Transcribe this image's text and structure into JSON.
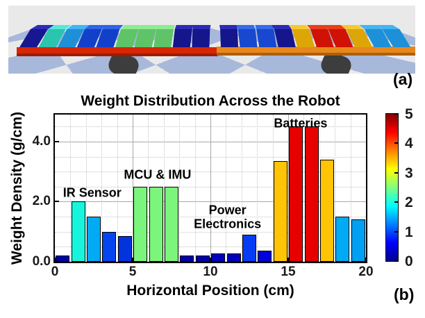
{
  "figure": {
    "panel_a_label": "(a)",
    "panel_b_label": "(b)"
  },
  "robot_render": {
    "floor": {
      "tile_light": "#e9e9e9",
      "tile_blue": "#a7b8da"
    },
    "base": {
      "left_color": "#d62604",
      "left_shadow": "#9e1b00",
      "right_color": "#e8871c",
      "right_shadow": "#aa600e"
    },
    "wheel_color": "#3d3d3d",
    "blocks": [
      {
        "front": "#17178f",
        "top": "#2d2dbb"
      },
      {
        "front": "#2bc4ae",
        "top": "#55ead5"
      },
      {
        "front": "#1e90d8",
        "top": "#43b5f2"
      },
      {
        "front": "#1240c9",
        "top": "#3063e8"
      },
      {
        "front": "#1240c9",
        "top": "#3063e8"
      },
      {
        "front": "#5fc468",
        "top": "#8deb93"
      },
      {
        "front": "#5fc468",
        "top": "#8deb93"
      },
      {
        "front": "#5fc468",
        "top": "#8deb93"
      },
      {
        "front": "#15158c",
        "top": "#2b2bb5"
      },
      {
        "front": "#15158c",
        "top": "#2b2bb5"
      },
      {
        "front": "#15158c",
        "top": "#2b2bb5"
      },
      {
        "front": "#1748cf",
        "top": "#366ceb"
      },
      {
        "front": "#1748cf",
        "top": "#366ceb"
      },
      {
        "front": "#15158c",
        "top": "#2b2bb5"
      },
      {
        "front": "#dca607",
        "top": "#f4ca30"
      },
      {
        "front": "#cf1204",
        "top": "#ec3c1b"
      },
      {
        "front": "#cf1204",
        "top": "#ec3c1b"
      },
      {
        "front": "#dca607",
        "top": "#f4ca30"
      },
      {
        "front": "#1e90d8",
        "top": "#43b5f2"
      },
      {
        "front": "#1e90d8",
        "top": "#43b5f2"
      }
    ]
  },
  "chart_data": {
    "type": "bar",
    "title": "Weight Distribution Across the Robot",
    "xlabel": "Horizontal Position (cm)",
    "ylabel": "Weight Density (g/cm)",
    "xlim": [
      0,
      20
    ],
    "ylim": [
      0,
      4.9
    ],
    "xticks": [
      0,
      5,
      10,
      15,
      20
    ],
    "yticks": [
      {
        "v": 0,
        "label": "0.0"
      },
      {
        "v": 2,
        "label": "2.0"
      },
      {
        "v": 4,
        "label": "4.0"
      }
    ],
    "bar_width": 0.9,
    "grid": {
      "x_minor_step": 1,
      "y_minor_step": 0.5,
      "x_major": [
        5,
        10,
        15
      ],
      "y_major": [
        2,
        4
      ],
      "major_color": "#a8a8a8",
      "minor_color": "#c3c3c3"
    },
    "bars": [
      {
        "x": 0.5,
        "value": 0.2,
        "color": "#0000a8"
      },
      {
        "x": 1.5,
        "value": 2.0,
        "color": "#17f5dc"
      },
      {
        "x": 2.5,
        "value": 1.5,
        "color": "#00aaf5"
      },
      {
        "x": 3.5,
        "value": 1.0,
        "color": "#0545f0"
      },
      {
        "x": 4.5,
        "value": 0.85,
        "color": "#0233dd"
      },
      {
        "x": 5.5,
        "value": 2.5,
        "color": "#7cf57c"
      },
      {
        "x": 6.5,
        "value": 2.5,
        "color": "#7cf57c"
      },
      {
        "x": 7.5,
        "value": 2.5,
        "color": "#7cf57c"
      },
      {
        "x": 8.5,
        "value": 0.2,
        "color": "#0000a8"
      },
      {
        "x": 9.5,
        "value": 0.2,
        "color": "#0000a8"
      },
      {
        "x": 10.5,
        "value": 0.28,
        "color": "#0000bc"
      },
      {
        "x": 11.5,
        "value": 0.28,
        "color": "#0000bc"
      },
      {
        "x": 12.5,
        "value": 0.9,
        "color": "#063cf5"
      },
      {
        "x": 13.5,
        "value": 0.38,
        "color": "#0000d8"
      },
      {
        "x": 14.5,
        "value": 3.35,
        "color": "#ffc403"
      },
      {
        "x": 15.5,
        "value": 4.5,
        "color": "#e60000"
      },
      {
        "x": 16.5,
        "value": 4.5,
        "color": "#e60000"
      },
      {
        "x": 17.5,
        "value": 3.4,
        "color": "#ffc403"
      },
      {
        "x": 18.5,
        "value": 1.5,
        "color": "#00aaf5"
      },
      {
        "x": 19.5,
        "value": 1.42,
        "color": "#00a0f2"
      }
    ],
    "annotations": [
      {
        "text": "IR Sensor",
        "x": 2.4,
        "y": 2.28
      },
      {
        "text": "MCU & IMU",
        "x": 6.6,
        "y": 2.9
      },
      {
        "text": "Power",
        "x": 11.1,
        "y": 1.72
      },
      {
        "text": "Electronics",
        "x": 11.1,
        "y": 1.24
      },
      {
        "text": "Batteries",
        "x": 15.8,
        "y": 4.6
      }
    ],
    "colorbar": {
      "min": 0,
      "max": 5,
      "ticks": [
        0,
        1,
        2,
        3,
        4,
        5
      ],
      "colormap": "jet",
      "stops": [
        "#000090",
        "#0000ff",
        "#0080ff",
        "#00ffff",
        "#80ff80",
        "#ffff00",
        "#ff8000",
        "#ff0000",
        "#800000"
      ]
    }
  }
}
